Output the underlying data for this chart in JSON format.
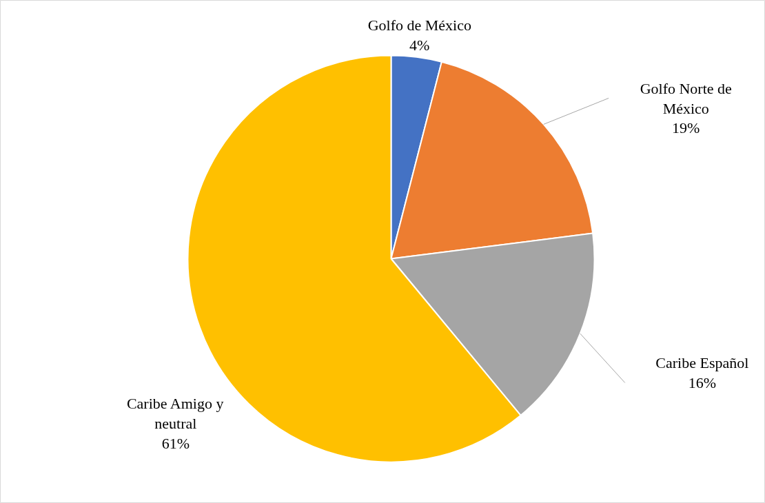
{
  "chart_data": {
    "type": "pie",
    "categories": [
      "Golfo de México",
      "Golfo Norte de México",
      "Caribe Español",
      "Caribe Amigo y neutral"
    ],
    "values": [
      4,
      19,
      16,
      61
    ],
    "colors": [
      "#4472c4",
      "#ed7d31",
      "#a5a5a5",
      "#ffc000"
    ],
    "value_labels": [
      "4%",
      "19%",
      "16%",
      "61%"
    ]
  }
}
